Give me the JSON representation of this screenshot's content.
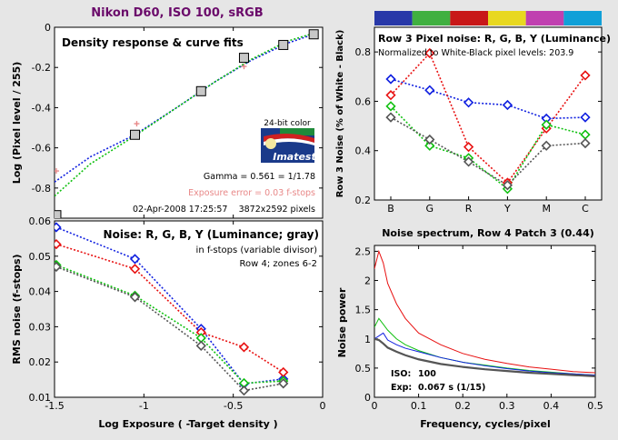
{
  "header": {
    "title": "Nikon D60, ISO 100, sRGB"
  },
  "colors": {
    "page_bg": "#e6e6e6",
    "title": "#6a0a6a",
    "red": "#e81010",
    "green": "#10c010",
    "blue": "#1020e0",
    "gray": "#555555",
    "yellow": "#e8d800",
    "magenta": "#d040c0",
    "cyan": "#10a0e0",
    "pink": "#e88888",
    "logo_blue": "#1a3a8a"
  },
  "color_bar": {
    "colors": [
      "#2838a8",
      "#40b040",
      "#c81818",
      "#e8d820",
      "#c040b0",
      "#10a0d8"
    ]
  },
  "logo": {
    "top_text": "24-bit color",
    "name": "Imatest"
  },
  "chart_data": [
    {
      "id": "density",
      "type": "scatter",
      "title": "Density response & curve fits",
      "ylabel": "Log (Pixel level / 255)",
      "xlim": [
        -1.5,
        0
      ],
      "ylim": [
        -0.95,
        0
      ],
      "xticks": [
        -1.5,
        -1,
        -0.5,
        0
      ],
      "xtick_labels": [
        "",
        "",
        "",
        ""
      ],
      "yticks": [
        -0.8,
        -0.6,
        -0.4,
        -0.2,
        0
      ],
      "ytick_labels": [
        "-0.8",
        "-0.6",
        "-0.4",
        "-0.2",
        "0"
      ],
      "squares": {
        "x": [
          -1.49,
          -1.05,
          -0.68,
          -0.44,
          -0.22,
          -0.05
        ],
        "y": [
          -0.935,
          -0.535,
          -0.318,
          -0.152,
          -0.088,
          -0.035
        ]
      },
      "pink_points": {
        "x": [
          -1.49,
          -1.04,
          -0.44
        ],
        "y": [
          -0.715,
          -0.48,
          -0.195
        ]
      },
      "fits": [
        {
          "color": "blue",
          "x": [
            -1.5,
            -1.3,
            -1.05,
            -0.8,
            -0.6,
            -0.4,
            -0.2,
            -0.05
          ],
          "y": [
            -0.77,
            -0.645,
            -0.535,
            -0.39,
            -0.27,
            -0.165,
            -0.08,
            -0.035
          ]
        },
        {
          "color": "green",
          "x": [
            -1.5,
            -1.3,
            -1.05,
            -0.8,
            -0.6,
            -0.4,
            -0.2,
            -0.05
          ],
          "y": [
            -0.84,
            -0.68,
            -0.54,
            -0.39,
            -0.27,
            -0.16,
            -0.07,
            -0.03
          ]
        }
      ],
      "annotations": {
        "gamma": "Gamma = 0.561 = 1/1.78",
        "exposure_error": "Exposure error = 0.03 f-stops",
        "date": "02-Apr-2008 17:25:57",
        "size": "3872x2592 pixels"
      }
    },
    {
      "id": "rms",
      "type": "line",
      "title": "Noise: R, G, B, Y (Luminance; gray)",
      "notes": [
        "in f-stops (variable divisor)",
        "Row 4; zones 6-2"
      ],
      "xlabel": "Log Exposure ( -Target density )",
      "ylabel": "RMS noise (f-stops)",
      "xlim": [
        -1.5,
        0
      ],
      "ylim": [
        0.01,
        0.06
      ],
      "xticks": [
        -1.5,
        -1,
        -0.5,
        0
      ],
      "xtick_labels": [
        "-1.5",
        "-1",
        "-0.5",
        "0"
      ],
      "yticks": [
        0.01,
        0.02,
        0.03,
        0.04,
        0.05,
        0.06
      ],
      "ytick_labels": [
        "0.01",
        "0.02",
        "0.03",
        "0.04",
        "0.05",
        "0.06"
      ],
      "x": [
        -1.49,
        -1.05,
        -0.68,
        -0.44,
        -0.22
      ],
      "series": [
        {
          "color": "blue",
          "values": [
            0.0582,
            0.0492,
            0.0294,
            0.0138,
            0.0152
          ]
        },
        {
          "color": "red",
          "values": [
            0.0534,
            0.0464,
            0.0284,
            0.0242,
            0.0171
          ]
        },
        {
          "color": "green",
          "values": [
            0.0475,
            0.0388,
            0.0268,
            0.014,
            0.0146
          ]
        },
        {
          "color": "gray",
          "values": [
            0.047,
            0.0384,
            0.0246,
            0.0119,
            0.0139
          ]
        }
      ]
    },
    {
      "id": "row3",
      "type": "line",
      "title": "Row 3 Pixel noise: R, G, B, Y (Luminance)",
      "subtitle": "Normalized to White-Black pixel levels: 203.9",
      "ylabel": "Row 3 Noise (% of White - Black)",
      "categories": [
        "B",
        "G",
        "R",
        "Y",
        "M",
        "C"
      ],
      "ylim": [
        0.2,
        0.9
      ],
      "yticks": [
        0.2,
        0.4,
        0.6,
        0.8
      ],
      "ytick_labels": [
        "0.2",
        "0.4",
        "0.6",
        "0.8"
      ],
      "series": [
        {
          "color": "blue",
          "values": [
            0.69,
            0.645,
            0.595,
            0.585,
            0.53,
            0.535
          ]
        },
        {
          "color": "red",
          "values": [
            0.625,
            0.795,
            0.415,
            0.27,
            0.49,
            0.705
          ]
        },
        {
          "color": "green",
          "values": [
            0.58,
            0.42,
            0.37,
            0.245,
            0.505,
            0.465
          ]
        },
        {
          "color": "gray",
          "values": [
            0.535,
            0.445,
            0.355,
            0.26,
            0.42,
            0.43
          ]
        }
      ]
    },
    {
      "id": "spectrum",
      "type": "line",
      "title": "Noise spectrum, Row 4 Patch 3 (0.44)",
      "xlabel": "Frequency, cycles/pixel",
      "ylabel": "Noise power",
      "xlim": [
        0,
        0.5
      ],
      "ylim": [
        0,
        2.6
      ],
      "xticks": [
        0,
        0.1,
        0.2,
        0.3,
        0.4,
        0.5
      ],
      "xtick_labels": [
        "0",
        "0.1",
        "0.2",
        "0.3",
        "0.4",
        "0.5"
      ],
      "yticks": [
        0,
        0.5,
        1,
        1.5,
        2,
        2.5
      ],
      "ytick_labels": [
        "0",
        "0.5",
        "1",
        "1.5",
        "2",
        "2.5"
      ],
      "iso_label": "ISO:",
      "iso_value": "100",
      "exp_label": "Exp:",
      "exp_value": "0.067 s  (1/15)",
      "x": [
        0,
        0.01,
        0.02,
        0.03,
        0.05,
        0.07,
        0.1,
        0.15,
        0.2,
        0.25,
        0.3,
        0.35,
        0.4,
        0.45,
        0.5
      ],
      "series": [
        {
          "color": "red",
          "values": [
            2.2,
            2.5,
            2.3,
            1.95,
            1.6,
            1.35,
            1.1,
            0.9,
            0.75,
            0.65,
            0.58,
            0.52,
            0.48,
            0.44,
            0.42
          ]
        },
        {
          "color": "green",
          "values": [
            1.2,
            1.35,
            1.25,
            1.15,
            1.0,
            0.9,
            0.8,
            0.68,
            0.6,
            0.55,
            0.5,
            0.46,
            0.43,
            0.4,
            0.38
          ]
        },
        {
          "color": "blue",
          "values": [
            1.0,
            1.05,
            1.1,
            0.98,
            0.9,
            0.84,
            0.78,
            0.68,
            0.6,
            0.54,
            0.49,
            0.45,
            0.42,
            0.4,
            0.38
          ]
        },
        {
          "color": "gray",
          "values": [
            1.0,
            0.98,
            0.92,
            0.85,
            0.78,
            0.72,
            0.65,
            0.57,
            0.52,
            0.48,
            0.45,
            0.42,
            0.4,
            0.38,
            0.36
          ]
        }
      ]
    }
  ]
}
